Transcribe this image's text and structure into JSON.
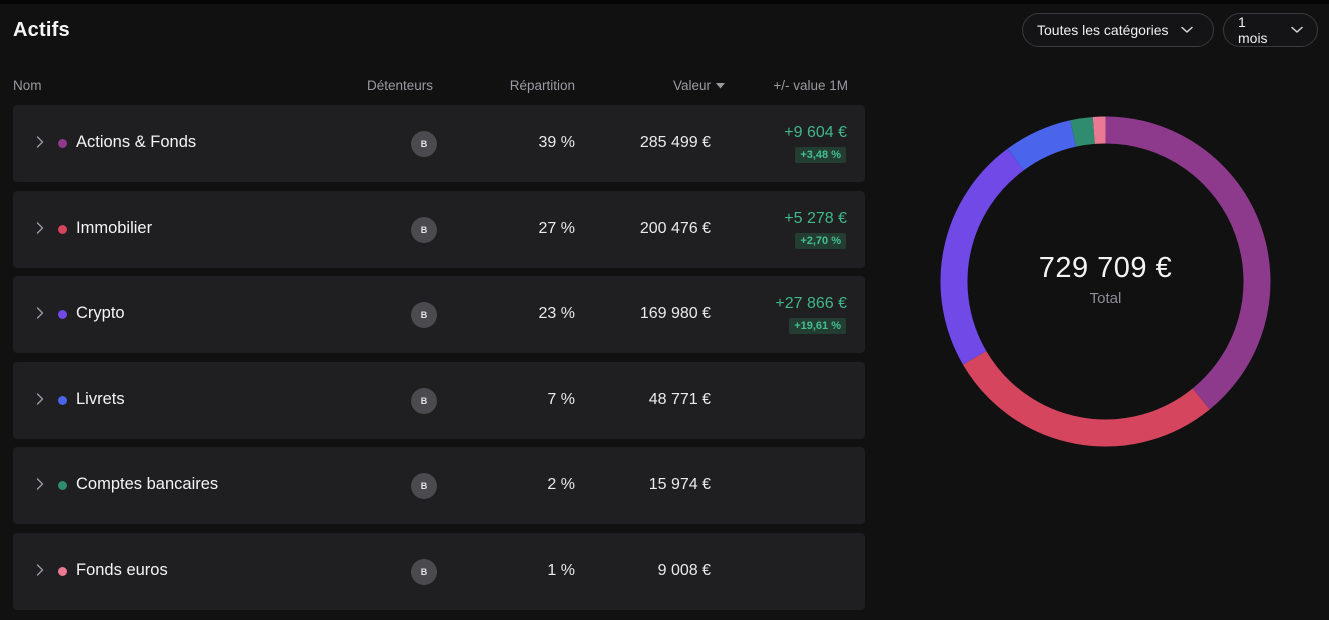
{
  "header": {
    "title": "Actifs",
    "category_filter": "Toutes les catégories",
    "period_filter": "1 mois"
  },
  "table": {
    "columns": {
      "nom": "Nom",
      "detenteurs": "Détenteurs",
      "repartition": "Répartition",
      "valeur": "Valeur",
      "variation": "+/- value 1M"
    },
    "rows": [
      {
        "name": "Actions & Fonds",
        "color": "#8e3a8c",
        "holder": "B",
        "share": "39 %",
        "value": "285 499 €",
        "delta": "+9 604 €",
        "delta_pct": "+3,48 %"
      },
      {
        "name": "Immobilier",
        "color": "#d5455d",
        "holder": "B",
        "share": "27 %",
        "value": "200 476 €",
        "delta": "+5 278 €",
        "delta_pct": "+2,70 %"
      },
      {
        "name": "Crypto",
        "color": "#7049e6",
        "holder": "B",
        "share": "23 %",
        "value": "169 980 €",
        "delta": "+27 866 €",
        "delta_pct": "+19,61 %"
      },
      {
        "name": "Livrets",
        "color": "#4a64ec",
        "holder": "B",
        "share": "7 %",
        "value": "48 771 €",
        "delta": "",
        "delta_pct": ""
      },
      {
        "name": "Comptes bancaires",
        "color": "#2f8c6e",
        "holder": "B",
        "share": "2 %",
        "value": "15 974 €",
        "delta": "",
        "delta_pct": ""
      },
      {
        "name": "Fonds euros",
        "color": "#ea7a93",
        "holder": "B",
        "share": "1 %",
        "value": "9 008 €",
        "delta": "",
        "delta_pct": ""
      }
    ]
  },
  "donut": {
    "total": "729 709 €",
    "total_label": "Total"
  },
  "chart_data": {
    "type": "pie",
    "categories": [
      "Actions & Fonds",
      "Immobilier",
      "Crypto",
      "Livrets",
      "Comptes bancaires",
      "Fonds euros"
    ],
    "values": [
      285499,
      200476,
      169980,
      48771,
      15974,
      9008
    ],
    "colors": [
      "#8e3a8c",
      "#d5455d",
      "#7049e6",
      "#4a64ec",
      "#2f8c6e",
      "#ea7a93"
    ]
  }
}
